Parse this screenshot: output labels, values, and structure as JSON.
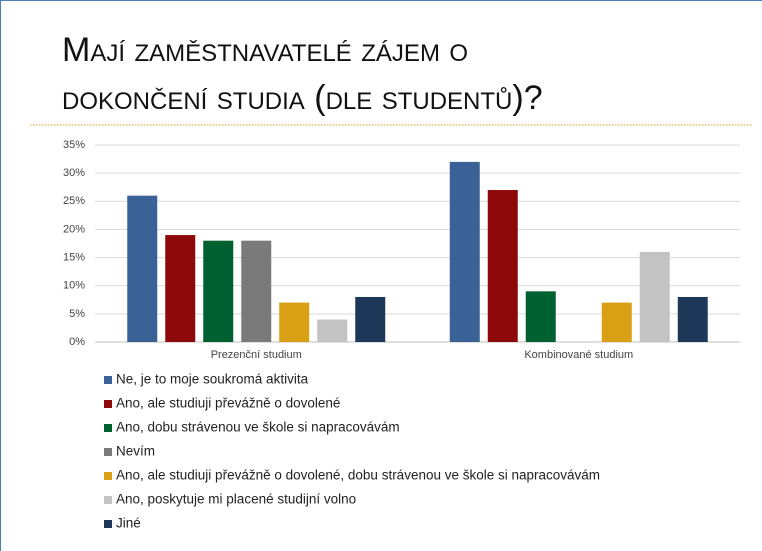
{
  "chart_data": {
    "type": "bar",
    "title_lines": [
      "Mají zaměstnavatelé zájem o",
      "dokončení studia (dle studentů)?"
    ],
    "categories": [
      "Prezenční studium",
      "Kombinované studium"
    ],
    "series": [
      {
        "name": "Ne, je to moje soukromá aktivita",
        "color": "#3a6296",
        "values": [
          26,
          32
        ]
      },
      {
        "name": "Ano, ale studiuji převážně o dovolené",
        "color": "#8e0a0a",
        "values": [
          19,
          27
        ]
      },
      {
        "name": "Ano, dobu strávenou ve škole si napracovávám",
        "color": "#00602f",
        "values": [
          18,
          9
        ]
      },
      {
        "name": "Nevím",
        "color": "#7a7a7a",
        "values": [
          18,
          0
        ]
      },
      {
        "name": "Ano, ale studiuji převážně o dovolené, dobu strávenou ve škole si napracovávám",
        "color": "#d8a012",
        "values": [
          7,
          7
        ]
      },
      {
        "name": "Ano, poskytuje mi placené studijní volno",
        "color": "#c3c3c3",
        "values": [
          4,
          16
        ]
      },
      {
        "name": "Jiné",
        "color": "#1e3859",
        "values": [
          8,
          8
        ]
      }
    ],
    "ylim": [
      0,
      35
    ],
    "yticks": [
      {
        "value": 0,
        "label": "0%"
      },
      {
        "value": 5,
        "label": "5%"
      },
      {
        "value": 10,
        "label": "10%"
      },
      {
        "value": 15,
        "label": "15%"
      },
      {
        "value": 20,
        "label": "20%"
      },
      {
        "value": 25,
        "label": "25%"
      },
      {
        "value": 30,
        "label": "30%"
      },
      {
        "value": 35,
        "label": "35%"
      }
    ],
    "grid": true
  }
}
